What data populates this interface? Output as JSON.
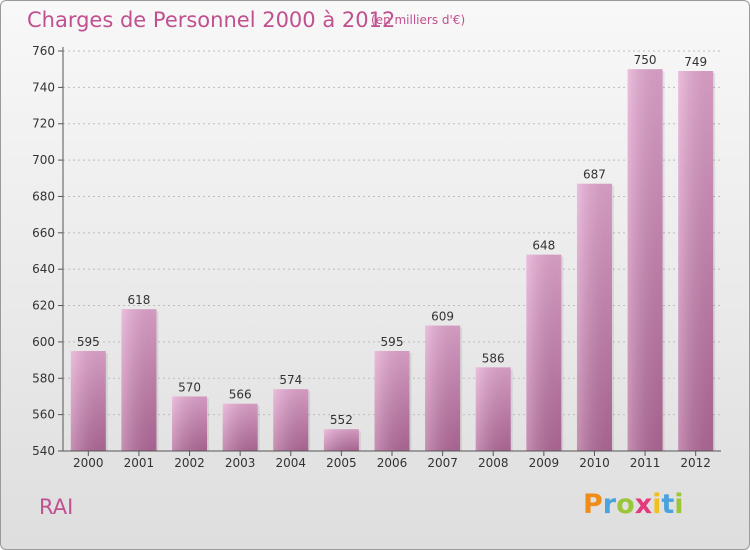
{
  "header": {
    "title": "Charges de Personnel 2000 à 2012",
    "subtitle": "(en milliers d'€)"
  },
  "commune": "RAI",
  "logo": {
    "text": "Proxiti"
  },
  "colors": {
    "bar_light": "#e6a8d2",
    "bar_dark": "#b46a9b",
    "accent": "#c0508f",
    "axis": "#555555"
  },
  "chart_data": {
    "type": "bar",
    "categories": [
      "2000",
      "2001",
      "2002",
      "2003",
      "2004",
      "2005",
      "2006",
      "2007",
      "2008",
      "2009",
      "2010",
      "2011",
      "2012"
    ],
    "values": [
      595,
      618,
      570,
      566,
      574,
      552,
      595,
      609,
      586,
      648,
      687,
      750,
      749
    ],
    "title": "Charges de Personnel 2000 à 2012",
    "subtitle": "(en milliers d'€)",
    "xlabel": "",
    "ylabel": "",
    "ylim": [
      540,
      760
    ],
    "yticks": [
      540,
      560,
      580,
      600,
      620,
      640,
      660,
      680,
      700,
      720,
      740,
      760
    ],
    "grid": true,
    "data_labels": true
  }
}
